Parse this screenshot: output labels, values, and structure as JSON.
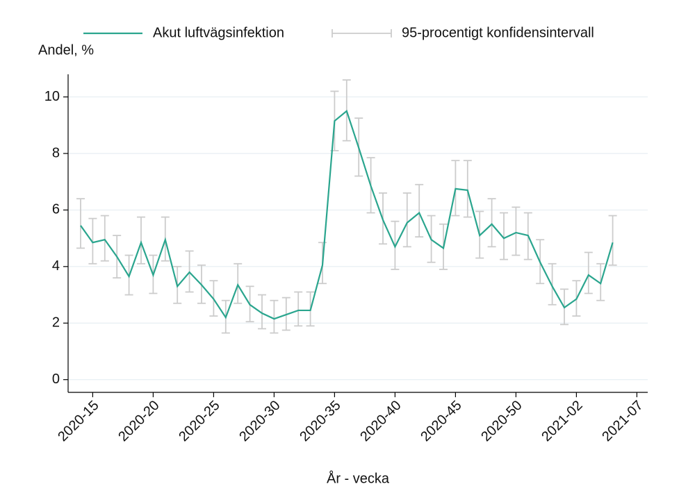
{
  "chart_data": {
    "type": "line",
    "y_label": "Andel, %",
    "x_label": "År - vecka",
    "categories": [
      null,
      "2020-15",
      null,
      null,
      null,
      null,
      "2020-20",
      null,
      null,
      null,
      null,
      "2020-25",
      null,
      null,
      null,
      null,
      "2020-30",
      null,
      null,
      null,
      null,
      "2020-35",
      null,
      null,
      null,
      null,
      "2020-40",
      null,
      null,
      null,
      null,
      "2020-45",
      null,
      null,
      null,
      null,
      "2020-50",
      null,
      null,
      null,
      null,
      "2021-02",
      null,
      null,
      null,
      null,
      "2021-07"
    ],
    "series": [
      {
        "name": "Akut luftvägsinfektion",
        "color": "#2aa58e",
        "values": [
          5.45,
          4.85,
          4.95,
          4.35,
          3.65,
          4.85,
          3.7,
          4.95,
          3.3,
          3.8,
          3.35,
          2.85,
          2.2,
          3.35,
          2.65,
          2.35,
          2.15,
          2.3,
          2.45,
          2.45,
          4.05,
          9.15,
          9.5,
          8.2,
          6.85,
          5.65,
          4.7,
          5.55,
          5.9,
          4.95,
          4.65,
          6.75,
          6.7,
          5.1,
          5.5,
          5.0,
          5.2,
          5.1,
          4.15,
          3.3,
          2.55,
          2.85,
          3.7,
          3.4,
          4.85,
          null,
          null
        ]
      }
    ],
    "ci": {
      "name": "95-procentigt konfidensintervall",
      "color": "#cccccc",
      "lower": [
        4.65,
        4.1,
        4.2,
        3.6,
        3.0,
        4.1,
        3.05,
        4.2,
        2.7,
        3.1,
        2.7,
        2.25,
        1.65,
        2.7,
        2.05,
        1.8,
        1.65,
        1.75,
        1.9,
        1.9,
        3.4,
        8.1,
        8.45,
        7.2,
        5.9,
        4.8,
        3.9,
        4.7,
        5.05,
        4.15,
        3.9,
        5.8,
        5.75,
        4.3,
        4.7,
        4.25,
        4.4,
        4.25,
        3.4,
        2.65,
        1.95,
        2.25,
        3.05,
        2.8,
        4.05,
        null,
        null
      ],
      "upper": [
        6.4,
        5.7,
        5.8,
        5.1,
        4.4,
        5.75,
        4.4,
        5.75,
        4.0,
        4.55,
        4.05,
        3.5,
        2.8,
        4.1,
        3.3,
        3.0,
        2.8,
        2.9,
        3.1,
        3.1,
        4.85,
        10.2,
        10.6,
        9.25,
        7.85,
        6.6,
        5.6,
        6.6,
        6.9,
        5.8,
        5.5,
        7.75,
        7.75,
        5.95,
        6.4,
        5.9,
        6.1,
        5.9,
        4.95,
        4.1,
        3.2,
        3.5,
        4.5,
        4.1,
        5.8,
        null,
        null
      ]
    },
    "ylim": [
      -0.45,
      10.8
    ],
    "yticks": [
      0,
      2,
      4,
      6,
      8,
      10
    ],
    "grid": true
  }
}
